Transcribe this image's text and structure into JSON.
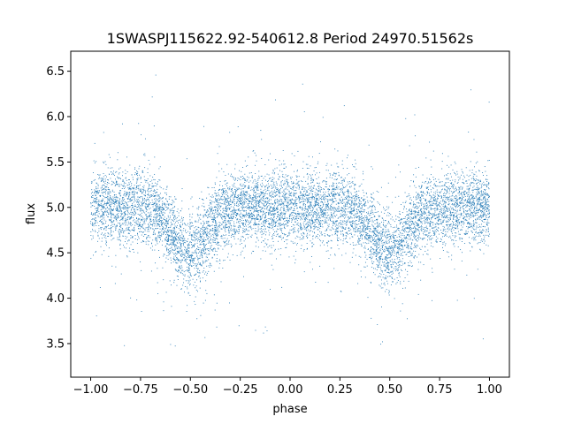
{
  "chart_data": {
    "type": "scatter",
    "title": "1SWASPJ115622.92-540612.8 Period 24970.51562s",
    "xlabel": "phase",
    "ylabel": "flux",
    "xlim": [
      -1.1,
      1.1
    ],
    "ylim": [
      3.13,
      6.72
    ],
    "xticks": [
      -1.0,
      -0.75,
      -0.5,
      -0.25,
      0.0,
      0.25,
      0.5,
      0.75,
      1.0
    ],
    "xtick_labels": [
      "−1.00",
      "−0.75",
      "−0.50",
      "−0.25",
      "0.00",
      "0.25",
      "0.50",
      "0.75",
      "1.00"
    ],
    "yticks": [
      3.5,
      4.0,
      4.5,
      5.0,
      5.5,
      6.0,
      6.5
    ],
    "ytick_labels": [
      "3.5",
      "4.0",
      "4.5",
      "5.0",
      "5.5",
      "6.0",
      "6.5"
    ],
    "grid": false,
    "legend": "none",
    "point_color": "#1f77b4",
    "series": [
      {
        "phase_x_range": [
          -1.0,
          1.0
        ],
        "baseline_flux": 5.0,
        "minima": [
          {
            "phase": -0.5,
            "flux": 4.5
          },
          {
            "phase": 0.5,
            "flux": 4.5
          }
        ],
        "scatter_range_flux": [
          3.3,
          6.55
        ]
      }
    ]
  }
}
